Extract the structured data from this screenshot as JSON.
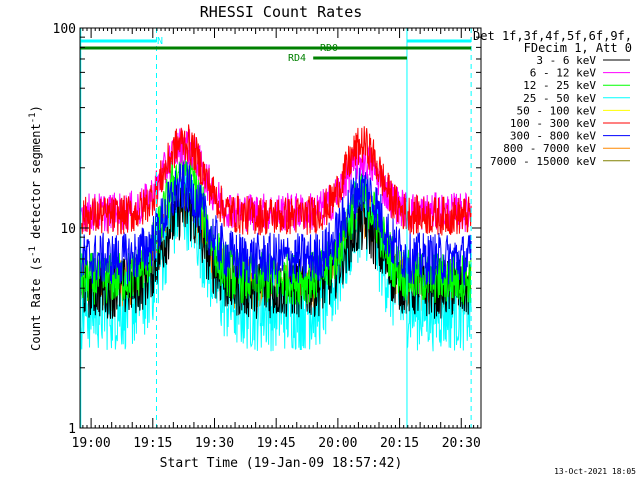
{
  "chart_data": {
    "type": "line",
    "title": "RHESSI Count Rates",
    "xlabel": "Start Time (19-Jan-09 18:57:42)",
    "ylabel_main": "Count Rate (s",
    "ylabel_sup1": "-1",
    "ylabel_mid": " detector segment",
    "ylabel_sup2": "-1",
    "ylabel_end": ")",
    "yscale": "log",
    "ylim": [
      1,
      100
    ],
    "xlim": [
      18.955,
      20.58
    ],
    "y_ticks": [
      {
        "value": 1,
        "label": "1"
      },
      {
        "value": 10,
        "label": "10"
      },
      {
        "value": 100,
        "label": "100"
      }
    ],
    "x_ticks": [
      {
        "value": 19.0,
        "label": "19:00"
      },
      {
        "value": 19.25,
        "label": "19:15"
      },
      {
        "value": 19.5,
        "label": "19:30"
      },
      {
        "value": 19.75,
        "label": "19:45"
      },
      {
        "value": 20.0,
        "label": "20:00"
      },
      {
        "value": 20.25,
        "label": "20:15"
      },
      {
        "value": 20.5,
        "label": "20:30"
      }
    ],
    "legend_header": [
      "Det 1f,3f,4f,5f,6f,9f,",
      "FDecim 1, Att 0"
    ],
    "series": [
      {
        "name": "3 - 6 keV",
        "color": "#000000",
        "base": 5.0,
        "peak1": 12.5,
        "peak2": 10.5,
        "noise": 0.07
      },
      {
        "name": "6 - 12 keV",
        "color": "#ff00ff",
        "base": 12.0,
        "peak1": 26.0,
        "peak2": 22.0,
        "noise": 0.045
      },
      {
        "name": "12 - 25 keV",
        "color": "#00ff00",
        "base": 5.6,
        "peak1": 20.0,
        "peak2": 14.0,
        "noise": 0.06
      },
      {
        "name": "25 - 50 keV",
        "color": "#00ffff",
        "base": 4.0,
        "peak1": 13.0,
        "peak2": 11.5,
        "noise": 0.1
      },
      {
        "name": "50 - 100 keV",
        "color": "#ffff00",
        "base": 0,
        "peak1": 0,
        "peak2": 0,
        "noise": 0
      },
      {
        "name": "100 - 300 keV",
        "color": "#ff0000",
        "base": 11.5,
        "peak1": 27.0,
        "peak2": 26.0,
        "noise": 0.045
      },
      {
        "name": "300 - 800 keV",
        "color": "#0000ff",
        "base": 7.0,
        "peak1": 16.0,
        "peak2": 16.0,
        "noise": 0.06
      },
      {
        "name": "800 - 7000 keV",
        "color": "#ff8800",
        "base": 5.2,
        "peak1": 13.5,
        "peak2": 12.0,
        "noise": 0.06
      },
      {
        "name": "7000 - 15000 keV",
        "color": "#808000",
        "base": 0,
        "peak1": 0,
        "peak2": 0,
        "noise": 0
      }
    ],
    "attenuator_bars": [
      {
        "label": "N",
        "color": "#00ffff",
        "segments": [
          [
            18.955,
            19.265
          ],
          [
            20.28,
            20.54
          ]
        ]
      },
      {
        "label": "RD0",
        "color": "#008000",
        "segments": [
          [
            18.955,
            20.54
          ]
        ]
      },
      {
        "label": "RD4",
        "color": "#008000",
        "segments": [
          [
            19.9,
            20.28
          ]
        ]
      }
    ],
    "vlines": [
      {
        "x": 18.958,
        "color": "#00ffff",
        "style": "solid"
      },
      {
        "x": 19.265,
        "color": "#00ffff",
        "style": "dashed"
      },
      {
        "x": 20.28,
        "color": "#00ffff",
        "style": "solid"
      },
      {
        "x": 20.54,
        "color": "#00ffff",
        "style": "dashed"
      }
    ],
    "footer_date": "13-Oct-2021 18:05"
  }
}
